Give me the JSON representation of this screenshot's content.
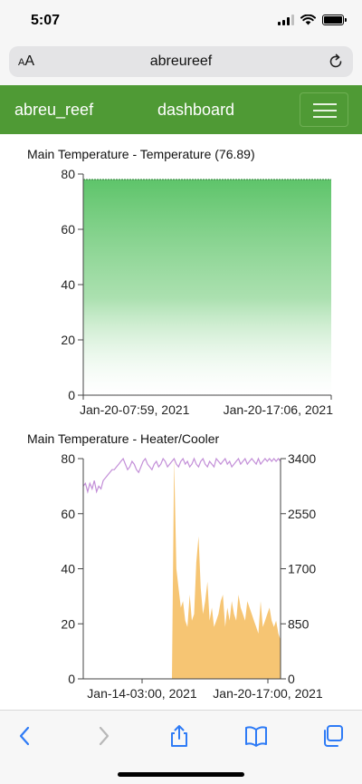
{
  "status": {
    "time": "5:07"
  },
  "browser": {
    "text_size_label": "AA",
    "address": "abreureef",
    "reload_icon": "reload-icon",
    "toolbar_icons": [
      "back-arrow-icon",
      "forward-arrow-icon",
      "share-icon",
      "bookmarks-icon",
      "tabs-icon"
    ]
  },
  "app": {
    "brand": "abreu_reef",
    "nav_link": "dashboard",
    "menu_icon": "hamburger-menu-icon",
    "accent": "#4f9a35"
  },
  "chart_data": [
    {
      "type": "area",
      "title": "Main Temperature - Temperature (76.89)",
      "x_tick_labels": [
        "Jan-20-07:59, 2021",
        "Jan-20-17:06, 2021"
      ],
      "y_ticks": [
        0,
        20,
        40,
        60,
        80
      ],
      "ylim": [
        0,
        80
      ],
      "series": [
        {
          "color": "#5ec46a",
          "values": [
            78,
            78,
            78,
            78,
            78
          ]
        }
      ]
    },
    {
      "type": "line",
      "title": "Main Temperature - Heater/Cooler",
      "x_tick_labels": [
        "Jan-14-03:00, 2021",
        "Jan-20-17:00, 2021"
      ],
      "y_ticks": [
        0,
        20,
        40,
        60,
        80
      ],
      "ylim": [
        0,
        80
      ],
      "y2_ticks": [
        0,
        850,
        1700,
        2550,
        3400
      ],
      "y2lim": [
        0,
        3400
      ],
      "series": [
        {
          "color": "#c38fd8",
          "axis": "left",
          "values": [
            70,
            71,
            68,
            71,
            69,
            72,
            68,
            70,
            69,
            72,
            73,
            74,
            75,
            76,
            76,
            77,
            78,
            79,
            80,
            78,
            76,
            77,
            79,
            78,
            76,
            75,
            77,
            79,
            80,
            78,
            77,
            76,
            78,
            79,
            77,
            78,
            80,
            79,
            77,
            78,
            79,
            80,
            78,
            77,
            79,
            80,
            78,
            79,
            77,
            78,
            80,
            78,
            77,
            79,
            80,
            78,
            77,
            79,
            78,
            77,
            80,
            79,
            78,
            79,
            80,
            78,
            79,
            77,
            78,
            79,
            80,
            78,
            79,
            80,
            78,
            79,
            80,
            79,
            78,
            80,
            78,
            79,
            80,
            79,
            80,
            79,
            80,
            79,
            80,
            79
          ]
        },
        {
          "color": "#f5c26b",
          "axis": "right",
          "values": [
            0,
            0,
            0,
            0,
            0,
            0,
            0,
            0,
            0,
            0,
            0,
            0,
            0,
            0,
            0,
            0,
            0,
            0,
            0,
            0,
            0,
            0,
            0,
            0,
            0,
            0,
            0,
            0,
            0,
            0,
            0,
            0,
            0,
            0,
            0,
            0,
            0,
            0,
            0,
            0,
            0,
            3400,
            1700,
            1400,
            1100,
            1200,
            900,
            800,
            1300,
            900,
            1000,
            1800,
            2200,
            1400,
            1000,
            1200,
            1500,
            900,
            1100,
            800,
            900,
            1000,
            1200,
            1300,
            800,
            1100,
            900,
            1200,
            1000,
            900,
            1300,
            1100,
            1000,
            900,
            1200,
            1100,
            1000,
            900,
            800,
            700,
            1200,
            800,
            900,
            1000,
            1100,
            900,
            800,
            900,
            700,
            600
          ]
        }
      ]
    }
  ]
}
